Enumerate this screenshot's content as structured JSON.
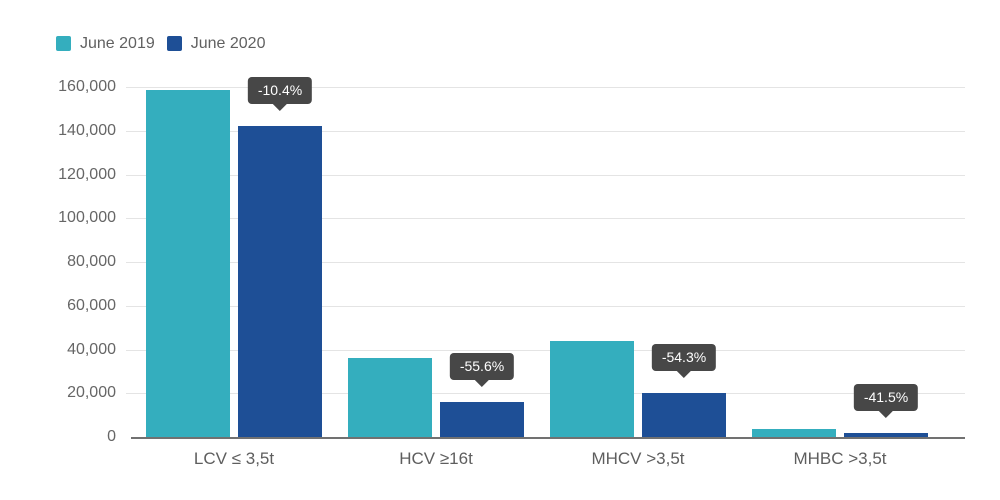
{
  "colors": {
    "background": "#FFFFFF",
    "series1": "#34AEBE",
    "series2": "#1E4F96",
    "badge_bg": "#474747",
    "badge_text": "#FFFFFF",
    "gridline": "#E4E4E4",
    "axis_line": "#717171",
    "ytick_text": "#666666",
    "xlabel_text": "#5E5E5E",
    "legend_text": "#616161"
  },
  "chart_data": {
    "type": "bar",
    "title": "",
    "categories": [
      "LCV ≤ 3,5t",
      "HCV ≥16t",
      "MHCV >3,5t",
      "MHBC >3,5t"
    ],
    "series": [
      {
        "name": "June 2019",
        "color": "#34AEBE",
        "values": [
          158600,
          36000,
          44000,
          3500
        ]
      },
      {
        "name": "June 2020",
        "color": "#1E4F96",
        "values": [
          142100,
          16000,
          20100,
          2050
        ]
      }
    ],
    "annotations": [
      "-10.4%",
      "-55.6%",
      "-54.3%",
      "-41.5%"
    ],
    "ylim": [
      0,
      160000
    ],
    "ytick_step": 20000,
    "ytick_labels": [
      "0",
      "20,000",
      "40,000",
      "60,000",
      "80,000",
      "100,000",
      "120,000",
      "140,000",
      "160,000"
    ],
    "grid": true,
    "legend_position": "top-left"
  }
}
